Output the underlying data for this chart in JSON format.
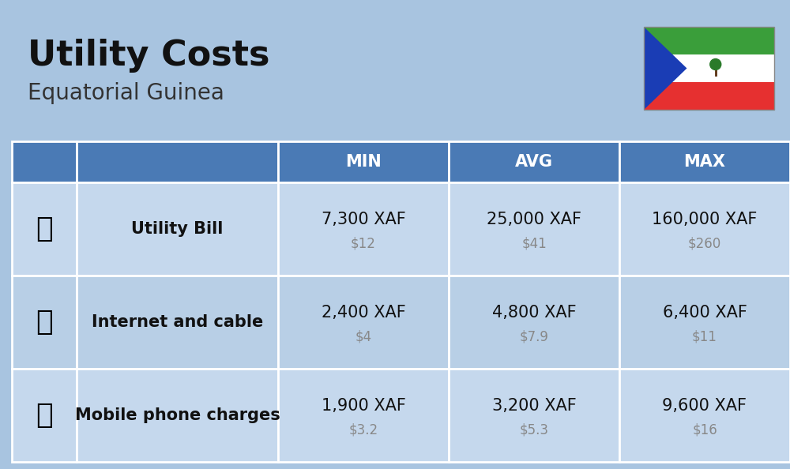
{
  "title": "Utility Costs",
  "subtitle": "Equatorial Guinea",
  "background_color": "#a8c4e0",
  "header_bg_color": "#4a7ab5",
  "header_text_color": "#ffffff",
  "row_bg_color_1": "#c5d8ed",
  "row_bg_color_2": "#b8cfe6",
  "cell_border_color": "#ffffff",
  "col_header": [
    "",
    "",
    "MIN",
    "AVG",
    "MAX"
  ],
  "rows": [
    {
      "label": "Utility Bill",
      "min_xaf": "7,300 XAF",
      "min_usd": "$12",
      "avg_xaf": "25,000 XAF",
      "avg_usd": "$41",
      "max_xaf": "160,000 XAF",
      "max_usd": "$260",
      "icon": "utility"
    },
    {
      "label": "Internet and cable",
      "min_xaf": "2,400 XAF",
      "min_usd": "$4",
      "avg_xaf": "4,800 XAF",
      "avg_usd": "$7.9",
      "max_xaf": "6,400 XAF",
      "max_usd": "$11",
      "icon": "internet"
    },
    {
      "label": "Mobile phone charges",
      "min_xaf": "1,900 XAF",
      "min_usd": "$3.2",
      "avg_xaf": "3,200 XAF",
      "avg_usd": "$5.3",
      "max_xaf": "9,600 XAF",
      "max_usd": "$16",
      "icon": "mobile"
    }
  ],
  "flag_colors": {
    "green": "#3a9e3a",
    "white": "#ffffff",
    "red": "#e63030",
    "blue": "#1a3db5",
    "triangle_white": "#ffffff"
  },
  "title_fontsize": 32,
  "subtitle_fontsize": 20,
  "header_fontsize": 15,
  "label_fontsize": 15,
  "value_fontsize": 15,
  "usd_fontsize": 12,
  "usd_color": "#888888",
  "label_color": "#111111",
  "value_color": "#111111"
}
